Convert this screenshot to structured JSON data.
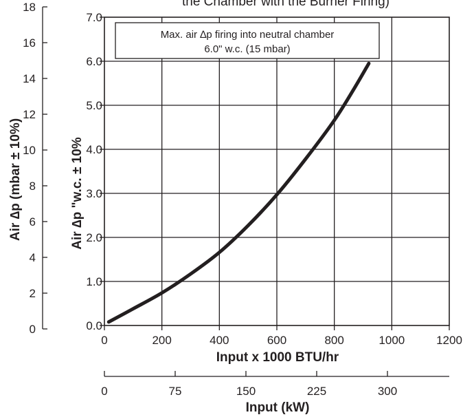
{
  "chart_data": {
    "type": "line",
    "title": "the Chamber with the Burner Firing)",
    "annotation": {
      "line1": "Max. air ∆p firing into neutral chamber",
      "line2": "6.0\" w.c. (15 mbar)"
    },
    "x_axis": {
      "label": "Input x 1000 BTU/hr",
      "range": [
        0,
        1200
      ],
      "ticks": [
        "0",
        "200",
        "400",
        "600",
        "800",
        "1000",
        "1200"
      ]
    },
    "secondary_x_axis": {
      "label": "Input (kW)",
      "ticks": [
        "0",
        "75",
        "150",
        "225",
        "300"
      ]
    },
    "y_axis": {
      "label": "Air ∆p \"w.c. ± 10%",
      "range": [
        0,
        7
      ],
      "ticks": [
        "0.0",
        "1.0",
        "2.0",
        "3.0",
        "4.0",
        "5.0",
        "6.0",
        "7.0"
      ]
    },
    "secondary_y_axis": {
      "label": "Air ∆p (mbar ± 10%)",
      "ticks": [
        "0",
        "2",
        "4",
        "6",
        "8",
        "10",
        "12",
        "14",
        "16",
        "18"
      ]
    },
    "grid": true,
    "colors": {
      "line": "#231f20",
      "grid": "#231f20",
      "background": "#ffffff"
    },
    "series": [
      {
        "x": [
          15,
          100,
          200,
          300,
          400,
          500,
          600,
          700,
          800,
          870,
          920
        ],
        "y": [
          0.08,
          0.38,
          0.74,
          1.17,
          1.66,
          2.27,
          2.97,
          3.78,
          4.66,
          5.39,
          5.95
        ]
      }
    ]
  }
}
